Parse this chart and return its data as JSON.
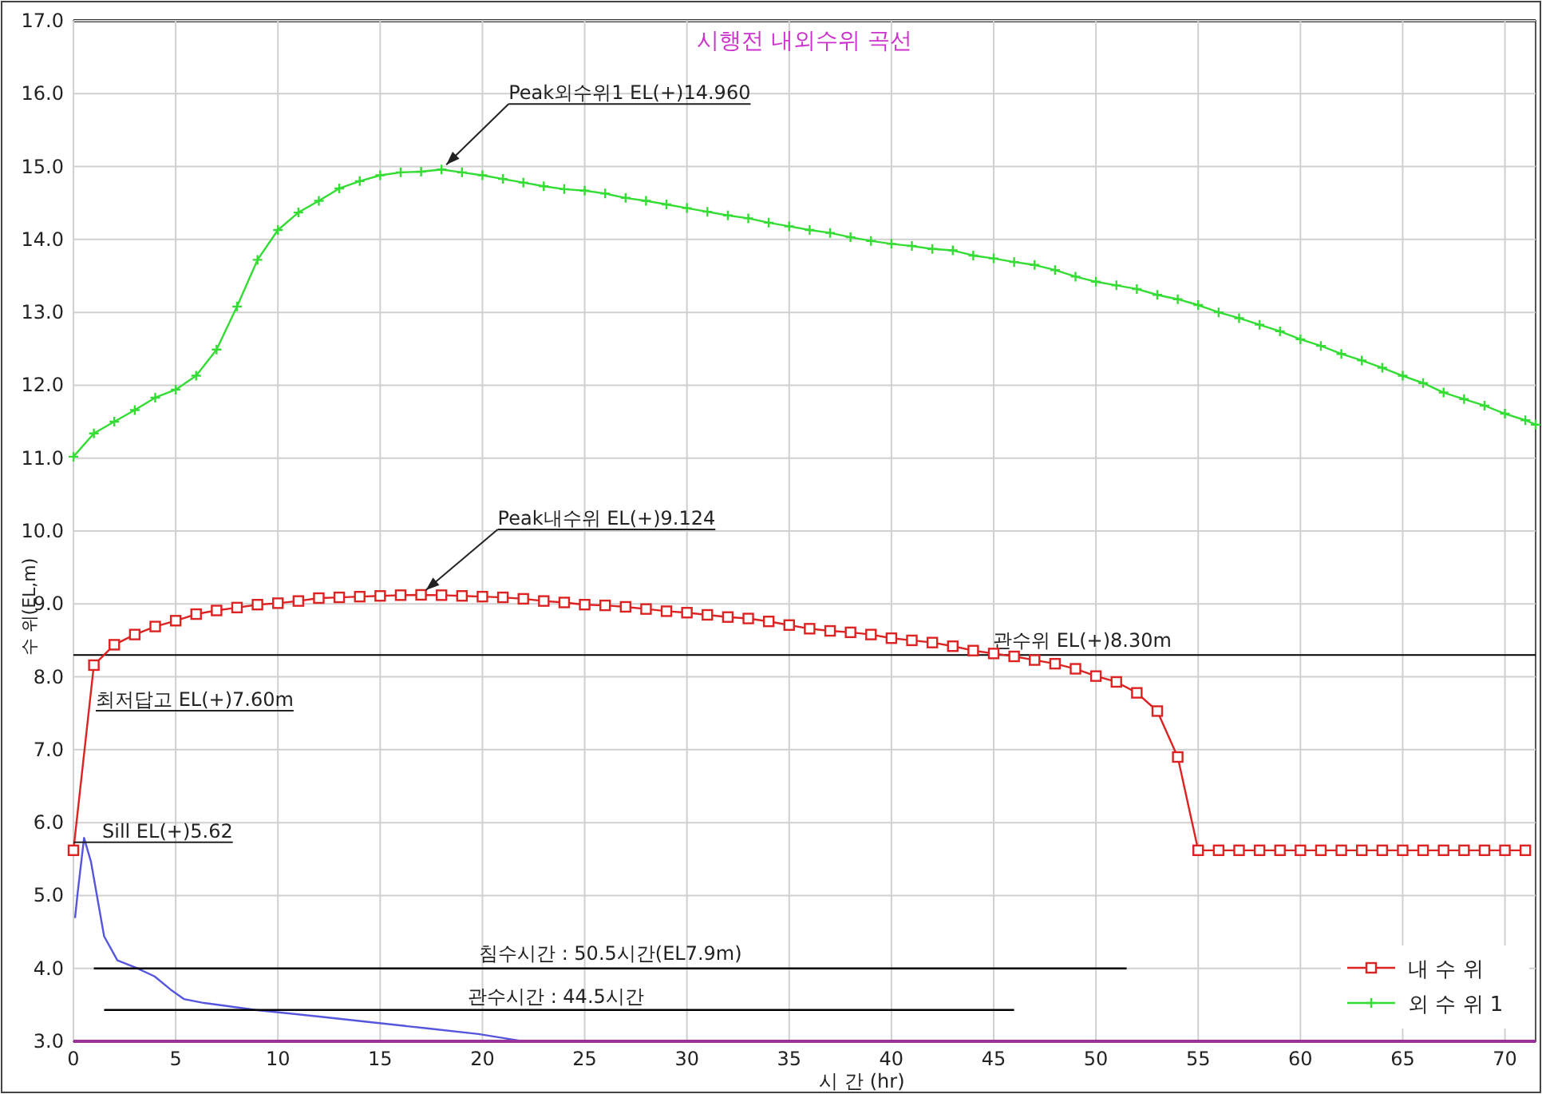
{
  "chart_data": {
    "type": "line",
    "title": "시행전 내외수위 곡선",
    "xlabel": "시 간 (hr)",
    "ylabel": "수 위(EL,m)",
    "xlim": [
      0,
      71.5
    ],
    "ylim": [
      3,
      17
    ],
    "xticks": [
      0,
      5,
      10,
      15,
      20,
      25,
      30,
      35,
      40,
      45,
      50,
      55,
      60,
      65,
      70
    ],
    "yticks": [
      {
        "value": 3,
        "label": "3.0"
      },
      {
        "value": 4,
        "label": "4.0"
      },
      {
        "value": 5,
        "label": "5.0"
      },
      {
        "value": 6,
        "label": "6.0"
      },
      {
        "value": 7,
        "label": "7.0"
      },
      {
        "value": 8,
        "label": "8.0"
      },
      {
        "value": 9,
        "label": "9.0"
      },
      {
        "value": 10,
        "label": "10.0"
      },
      {
        "value": 11,
        "label": "11.0"
      },
      {
        "value": 12,
        "label": "12.0"
      },
      {
        "value": 13,
        "label": "13.0"
      },
      {
        "value": 14,
        "label": "14.0"
      },
      {
        "value": 15,
        "label": "15.0"
      },
      {
        "value": 16,
        "label": "16.0"
      },
      {
        "value": 17,
        "label": "17.0"
      }
    ],
    "grid": true,
    "legend": "bottom right",
    "line_style": "solid",
    "x": [
      0,
      1,
      2,
      3,
      4,
      5,
      6,
      7,
      8,
      9,
      10,
      11,
      12,
      13,
      14,
      15,
      16,
      17,
      18,
      19,
      20,
      21,
      22,
      23,
      24,
      25,
      26,
      27,
      28,
      29,
      30,
      31,
      32,
      33,
      34,
      35,
      36,
      37,
      38,
      39,
      40,
      41,
      42,
      43,
      44,
      45,
      46,
      47,
      48,
      49,
      50,
      51,
      52,
      53,
      54,
      55,
      56,
      57,
      58,
      59,
      60,
      61,
      62,
      63,
      64,
      65,
      66,
      67,
      68,
      69,
      70,
      71
    ],
    "series": [
      {
        "name": "내 수 위",
        "color": "#dd2222",
        "marker": "square",
        "values": [
          5.62,
          8.16,
          8.44,
          8.58,
          8.69,
          8.77,
          8.86,
          8.91,
          8.95,
          8.99,
          9.01,
          9.04,
          9.08,
          9.09,
          9.1,
          9.11,
          9.12,
          9.124,
          9.12,
          9.11,
          9.1,
          9.09,
          9.07,
          9.04,
          9.02,
          8.99,
          8.98,
          8.96,
          8.93,
          8.9,
          8.88,
          8.85,
          8.82,
          8.8,
          8.76,
          8.71,
          8.66,
          8.63,
          8.61,
          8.58,
          8.53,
          8.5,
          8.47,
          8.42,
          8.36,
          8.32,
          8.28,
          8.23,
          8.18,
          8.11,
          8.01,
          7.93,
          7.78,
          7.53,
          6.9,
          5.62,
          5.62,
          5.62,
          5.62,
          5.62,
          5.62,
          5.62,
          5.62,
          5.62,
          5.62,
          5.62,
          5.62,
          5.62,
          5.62,
          5.62,
          5.62,
          5.62
        ]
      },
      {
        "name": "외 수 위 1",
        "color": "#33dd33",
        "marker": "cross",
        "x": [
          0,
          1,
          2,
          3,
          4,
          5,
          6,
          7,
          8,
          9,
          10,
          11,
          12,
          13,
          14,
          15,
          16,
          17,
          18,
          19,
          20,
          21,
          22,
          23,
          24,
          25,
          26,
          27,
          28,
          29,
          30,
          31,
          32,
          33,
          34,
          35,
          36,
          37,
          38,
          39,
          40,
          41,
          42,
          43,
          44,
          45,
          46,
          47,
          48,
          49,
          50,
          51,
          52,
          53,
          54,
          55,
          56,
          57,
          58,
          59,
          60,
          61,
          62,
          63,
          64,
          65,
          66,
          67,
          68,
          69,
          70,
          71,
          71.5
        ],
        "values": [
          11.02,
          11.34,
          11.5,
          11.66,
          11.83,
          11.94,
          12.13,
          12.49,
          13.08,
          13.72,
          14.13,
          14.37,
          14.53,
          14.7,
          14.8,
          14.88,
          14.92,
          14.93,
          14.96,
          14.92,
          14.88,
          14.83,
          14.78,
          14.73,
          14.69,
          14.67,
          14.63,
          14.57,
          14.53,
          14.48,
          14.43,
          14.38,
          14.33,
          14.29,
          14.23,
          14.18,
          14.13,
          14.09,
          14.03,
          13.98,
          13.94,
          13.91,
          13.87,
          13.85,
          13.78,
          13.74,
          13.69,
          13.65,
          13.58,
          13.49,
          13.42,
          13.37,
          13.32,
          13.24,
          13.18,
          13.1,
          13.0,
          12.92,
          12.83,
          12.74,
          12.63,
          12.54,
          12.43,
          12.34,
          12.24,
          12.13,
          12.03,
          11.9,
          11.81,
          11.72,
          11.61,
          11.52,
          11.46
        ]
      },
      {
        "color": "#5555dd",
        "marker": "none",
        "x": [
          0.08,
          0.2,
          0.52,
          0.86,
          1.5,
          2.15,
          3.06,
          3.97,
          4.75,
          5.4,
          6.3,
          7.35,
          8.9,
          12.0,
          14.6,
          17.2,
          19.8,
          21.8
        ],
        "values": [
          4.69,
          5.02,
          5.79,
          5.46,
          4.44,
          4.11,
          4.01,
          3.89,
          3.71,
          3.58,
          3.53,
          3.49,
          3.43,
          3.34,
          3.26,
          3.18,
          3.1,
          3.01
        ]
      },
      {
        "color": "#993399",
        "marker": "none",
        "x": [
          0,
          71.5
        ],
        "values": [
          3,
          3
        ]
      },
      {
        "color": "#000000",
        "marker": "none",
        "x": [
          1.0,
          51.5
        ],
        "values": [
          4.0,
          4.0
        ]
      },
      {
        "color": "#000000",
        "marker": "none",
        "x": [
          1.5,
          46.0
        ],
        "values": [
          3.43,
          3.43
        ]
      }
    ],
    "ref_lines": [
      {
        "axis": "y",
        "value": 8.3,
        "label": "관수위 EL(+)8.30m",
        "color": "#000000"
      }
    ],
    "annotations": [
      {
        "text": "Peak외수위1 EL(+)14.960",
        "x": 18,
        "y": 14.96
      },
      {
        "text": "Peak내수위 EL(+)9.124",
        "x": 17,
        "y": 9.124
      },
      "최저답고 EL(+)7.60m",
      {
        "text": "Sill EL(+)5.62",
        "x": 0,
        "y": 5.62
      },
      "침수시간 : 50.5시간(EL7.9m)",
      "관수시간 : 44.5시간"
    ]
  }
}
